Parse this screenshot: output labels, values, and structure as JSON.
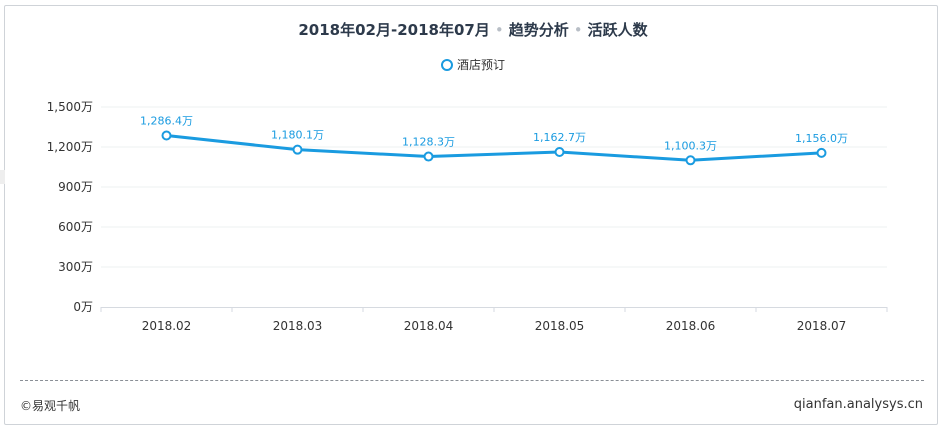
{
  "header": {
    "title_part1": "2018年02月-2018年07月",
    "title_part2": "趋势分析",
    "title_part3": "活跃人数",
    "separator": "•"
  },
  "legend": {
    "label": "酒店预订",
    "color": "#1a9be0"
  },
  "footer": {
    "copyright": "©易观千帆",
    "site": "qianfan.analysys.cn"
  },
  "chart_data": {
    "type": "line",
    "categories": [
      "2018.02",
      "2018.03",
      "2018.04",
      "2018.05",
      "2018.06",
      "2018.07"
    ],
    "series": [
      {
        "name": "酒店预订",
        "values": [
          1286.4,
          1180.1,
          1128.3,
          1162.7,
          1100.3,
          1156.0
        ],
        "labels": [
          "1,286.4万",
          "1,180.1万",
          "1,128.3万",
          "1,162.7万",
          "1,100.3万",
          "1,156.0万"
        ],
        "color": "#1a9be0"
      }
    ],
    "yticks": [
      0,
      300,
      600,
      900,
      1200,
      1500
    ],
    "ytick_labels": [
      "0万",
      "300万",
      "600万",
      "900万",
      "1,200万",
      "1,500万"
    ],
    "ylim": [
      0,
      1500
    ],
    "grid": true,
    "legend_position": "top-center"
  }
}
